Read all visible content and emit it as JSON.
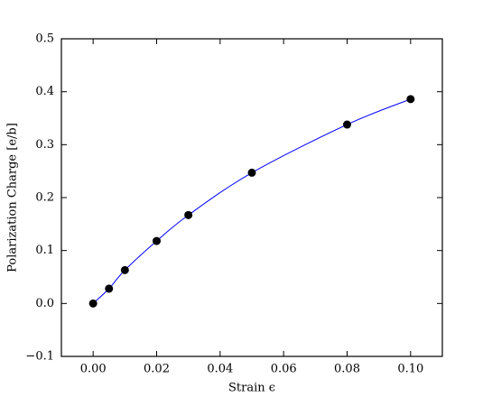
{
  "chart_data": {
    "type": "scatter",
    "x_label": "Strain ϵ",
    "y_label": "Polarization Charge [e/b]",
    "x": [
      0,
      0.005,
      0.01,
      0.02,
      0.03,
      0.05,
      0.08,
      0.1
    ],
    "series": [
      {
        "color": "#000000",
        "values": [
          0.0,
          0.028,
          0.063,
          0.118,
          0.167,
          0.247,
          0.338,
          0.386
        ]
      }
    ],
    "line_color": "#0000ff",
    "xlim": [
      -0.01,
      0.11
    ],
    "ylim": [
      -0.1,
      0.5
    ],
    "xticks": [
      {
        "value": 0,
        "label": "0.00"
      },
      {
        "value": 0.02,
        "label": "0.02"
      },
      {
        "value": 0.04,
        "label": "0.04"
      },
      {
        "value": 0.06,
        "label": "0.06"
      },
      {
        "value": 0.08,
        "label": "0.08"
      },
      {
        "value": 0.1,
        "label": "0.10"
      }
    ],
    "yticks": [
      {
        "value": -0.1,
        "label": "−0.1"
      },
      {
        "value": 0,
        "label": "0.0"
      },
      0.1,
      0.2,
      0.3,
      0.4,
      0.5
    ]
  }
}
